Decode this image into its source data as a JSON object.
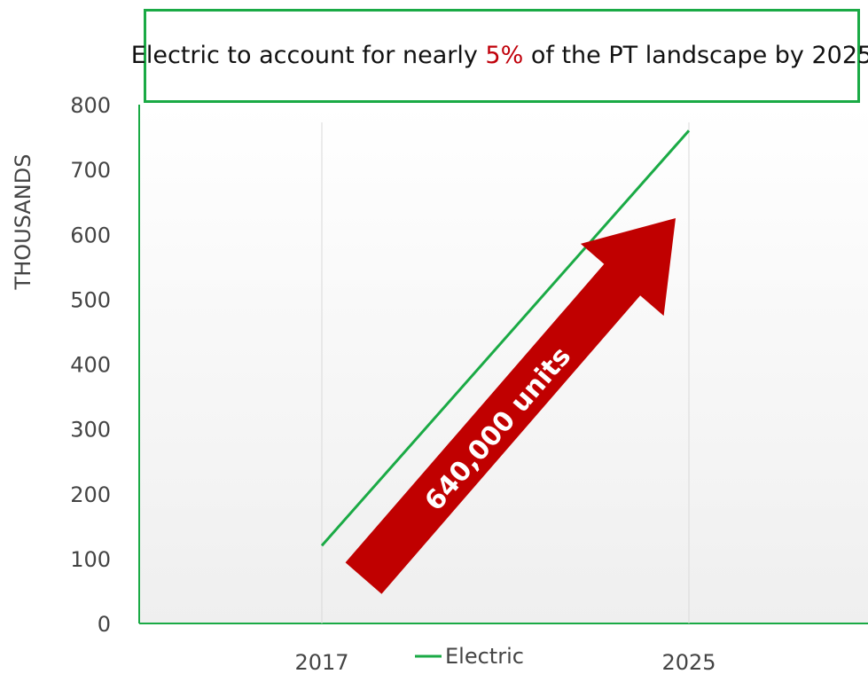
{
  "title": {
    "part1": "Electric to account for nearly ",
    "highlight": "5%",
    "part2": " of the PT landscape by 2025",
    "highlight_color": "#c0000a",
    "border_color": "#1aaa45"
  },
  "chart_data": {
    "type": "line",
    "categories": [
      "2017",
      "2025"
    ],
    "series": [
      {
        "name": "Electric",
        "values": [
          120,
          760
        ],
        "color": "#1aaa45"
      }
    ],
    "ylabel": "THOUSANDS",
    "ylim": [
      0,
      800
    ],
    "yticks": [
      0,
      100,
      200,
      300,
      400,
      500,
      600,
      700,
      800
    ],
    "legend": {
      "position": "bottom",
      "entries": [
        "Electric"
      ]
    },
    "annotation": {
      "text": "640,000 units",
      "color": "#c00000"
    }
  }
}
